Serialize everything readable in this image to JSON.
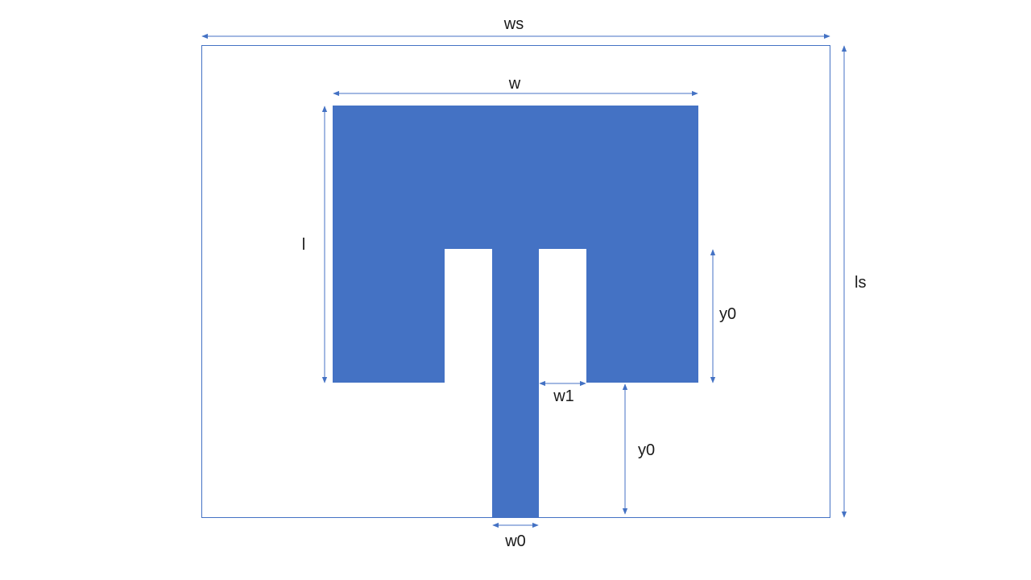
{
  "colors": {
    "patch_fill": "#4472C4",
    "arrow": "#4472C4",
    "substrate_stroke": "#4472C4",
    "label_text": "#1a1a1a"
  },
  "labels": {
    "ws": "ws",
    "ls": "ls",
    "w": "w",
    "l": "l",
    "y0_inset": "y0",
    "y0_feed": "y0",
    "w1": "w1",
    "w0": "w0"
  }
}
